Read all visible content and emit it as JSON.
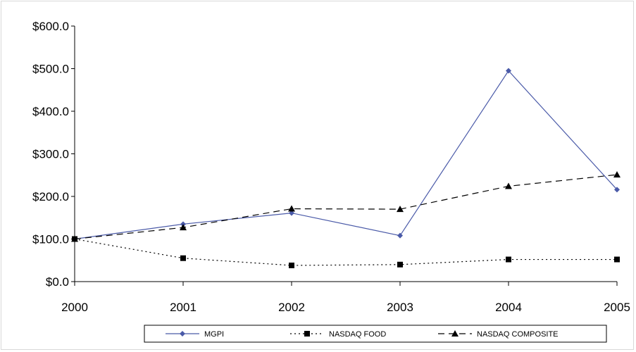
{
  "chart_data": {
    "type": "line",
    "title": "",
    "xlabel": "",
    "ylabel": "",
    "x": [
      "2000",
      "2001",
      "2002",
      "2003",
      "2004",
      "2005"
    ],
    "ylim": [
      0,
      600
    ],
    "y_ticks": [
      0,
      100,
      200,
      300,
      400,
      500,
      600
    ],
    "y_tick_labels": [
      "$0.0",
      "$100.0",
      "$200.0",
      "$300.0",
      "$400.0",
      "$500.0",
      "$600.0"
    ],
    "grid": false,
    "legend_position": "bottom",
    "series": [
      {
        "name": "MGPI",
        "values": [
          100,
          135,
          161,
          108,
          495,
          216
        ],
        "color": "#4a5aa8",
        "marker": "diamond",
        "line": "solid"
      },
      {
        "name": "NASDAQ FOOD",
        "values": [
          100,
          55,
          38,
          40,
          52,
          52
        ],
        "color": "#000000",
        "marker": "square",
        "line": "dotted"
      },
      {
        "name": "NASDAQ COMPOSITE",
        "values": [
          100,
          127,
          171,
          170,
          224,
          251
        ],
        "color": "#000000",
        "marker": "triangle",
        "line": "dashed"
      }
    ]
  }
}
